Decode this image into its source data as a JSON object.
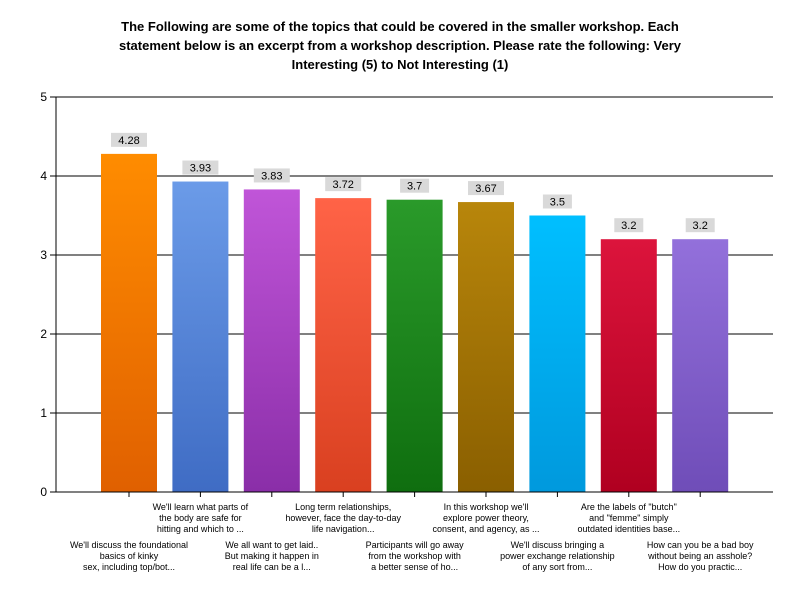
{
  "chart_data": {
    "type": "bar",
    "title_lines": [
      "The Following are some of the topics that could be covered in the smaller workshop.  Each",
      "statement below is an excerpt from a workshop description.  Please rate the following: Very",
      "Interesting (5) to Not Interesting (1)"
    ],
    "ylim": [
      0,
      5
    ],
    "yticks": [
      "0",
      "1",
      "2",
      "3",
      "4",
      "5"
    ],
    "grid": true,
    "categories": [
      [
        "We'll discuss the foundational",
        "basics of kinky",
        "sex, including top/bot..."
      ],
      [
        "We'll learn what parts of",
        "the body are safe for",
        "hitting and which to ..."
      ],
      [
        "We all want to get laid..",
        "But making it happen in",
        "real life can be a l..."
      ],
      [
        "Long term relationships,",
        "however, face the day-to-day",
        "life navigation..."
      ],
      [
        "Participants will go away",
        "from the workshop with",
        "a better sense of ho..."
      ],
      [
        "In this workshop we'll",
        "explore power theory,",
        "consent, and agency, as ..."
      ],
      [
        "We'll discuss bringing a",
        "power exchange relationship",
        "of any sort from..."
      ],
      [
        "Are the labels of \"butch\"",
        "and \"femme\" simply",
        "outdated identities base..."
      ],
      [
        "How can you be a bad boy",
        "without being an asshole?",
        "How do you practic..."
      ]
    ],
    "values": [
      4.28,
      3.93,
      3.83,
      3.72,
      3.7,
      3.67,
      3.5,
      3.2,
      3.2
    ],
    "data_labels": [
      "4.28",
      "3.93",
      "3.83",
      "3.72",
      "3.7",
      "3.67",
      "3.5",
      "3.2",
      "3.2"
    ],
    "colors": [
      [
        "#ff8c00",
        "#e06000"
      ],
      [
        "#6b9be8",
        "#3f6cc4"
      ],
      [
        "#c055d8",
        "#8a2ea8"
      ],
      [
        "#ff6347",
        "#d94020"
      ],
      [
        "#2a9a2a",
        "#0f6e0f"
      ],
      [
        "#b8860b",
        "#8a5f00"
      ],
      [
        "#00bfff",
        "#0099dd"
      ],
      [
        "#dc143c",
        "#b00020"
      ],
      [
        "#9370db",
        "#6f4db8"
      ]
    ]
  }
}
